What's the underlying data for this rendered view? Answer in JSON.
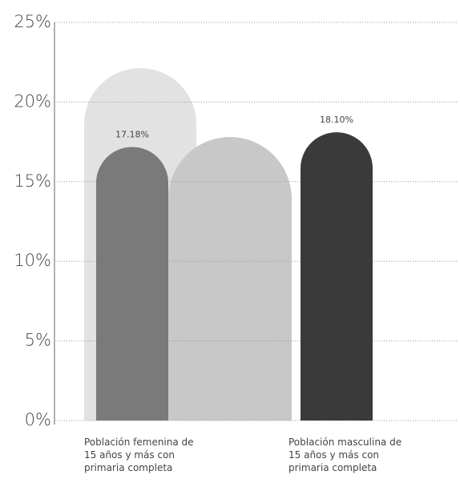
{
  "chart_data": {
    "type": "bar",
    "categories": [
      "Población femenina de 15 años y más con primaria completa",
      "Población masculina de 15 años y más con primaria completa"
    ],
    "values": [
      17.18,
      18.1
    ],
    "value_labels": [
      "17.18%",
      "18.10%"
    ],
    "colors": [
      "#7a7a7a",
      "#3a3a3a"
    ],
    "ylim": [
      0,
      25
    ],
    "yticks": [
      {
        "value": 0,
        "label": "0%"
      },
      {
        "value": 5,
        "label": "5%"
      },
      {
        "value": 10,
        "label": "10%"
      },
      {
        "value": 15,
        "label": "15%"
      },
      {
        "value": 20,
        "label": "20%"
      },
      {
        "value": 25,
        "label": "25%"
      }
    ],
    "grid": true
  }
}
